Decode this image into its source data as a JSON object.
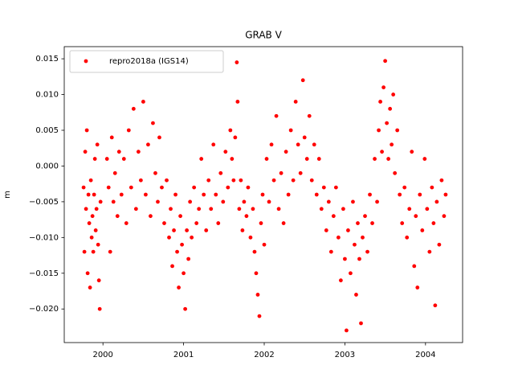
{
  "chart_data": {
    "type": "scatter",
    "title": "GRAB V",
    "y_label": "m",
    "legend_position": "upper left",
    "series": [
      {
        "name": "repro2018a (IGS14)",
        "color": "#ff0000",
        "x": [
          1999.76,
          1999.77,
          1999.78,
          1999.79,
          1999.8,
          1999.81,
          1999.82,
          1999.83,
          1999.84,
          1999.85,
          1999.86,
          1999.87,
          1999.88,
          1999.89,
          1999.9,
          1999.91,
          1999.92,
          1999.93,
          1999.94,
          1999.95,
          1999.96,
          1999.97,
          2000.05,
          2000.07,
          2000.09,
          2000.11,
          2000.13,
          2000.15,
          2000.18,
          2000.2,
          2000.23,
          2000.26,
          2000.29,
          2000.32,
          2000.35,
          2000.38,
          2000.41,
          2000.44,
          2000.47,
          2000.5,
          2000.53,
          2000.56,
          2000.59,
          2000.62,
          2000.65,
          2000.68,
          2000.7,
          2000.73,
          2000.76,
          2000.79,
          2000.82,
          2000.84,
          2000.86,
          2000.88,
          2000.9,
          2000.92,
          2000.94,
          2000.96,
          2000.98,
          2001.0,
          2001.02,
          2001.04,
          2001.06,
          2001.08,
          2001.1,
          2001.13,
          2001.16,
          2001.19,
          2001.22,
          2001.25,
          2001.28,
          2001.31,
          2001.34,
          2001.37,
          2001.4,
          2001.43,
          2001.46,
          2001.49,
          2001.52,
          2001.55,
          2001.58,
          2001.6,
          2001.62,
          2001.64,
          2001.66,
          2001.67,
          2001.69,
          2001.71,
          2001.73,
          2001.75,
          2001.78,
          2001.8,
          2001.83,
          2001.86,
          2001.88,
          2001.9,
          2001.92,
          2001.94,
          2001.96,
          2001.98,
          2002.0,
          2002.03,
          2002.06,
          2002.09,
          2002.12,
          2002.15,
          2002.18,
          2002.21,
          2002.24,
          2002.27,
          2002.3,
          2002.33,
          2002.36,
          2002.39,
          2002.42,
          2002.45,
          2002.48,
          2002.5,
          2002.53,
          2002.56,
          2002.59,
          2002.62,
          2002.65,
          2002.68,
          2002.71,
          2002.74,
          2002.77,
          2002.8,
          2002.83,
          2002.86,
          2002.89,
          2002.92,
          2002.95,
          2002.98,
          2003.0,
          2003.02,
          2003.04,
          2003.07,
          2003.1,
          2003.12,
          2003.14,
          2003.16,
          2003.18,
          2003.2,
          2003.22,
          2003.25,
          2003.28,
          2003.31,
          2003.34,
          2003.37,
          2003.4,
          2003.42,
          2003.44,
          2003.46,
          2003.48,
          2003.5,
          2003.52,
          2003.54,
          2003.56,
          2003.58,
          2003.6,
          2003.62,
          2003.65,
          2003.68,
          2003.71,
          2003.74,
          2003.77,
          2003.8,
          2003.83,
          2003.86,
          2003.88,
          2003.9,
          2003.93,
          2003.96,
          2003.99,
          2004.02,
          2004.05,
          2004.08,
          2004.1,
          2004.12,
          2004.14,
          2004.17,
          2004.2,
          2004.23,
          2004.25
        ],
        "values": [
          -0.003,
          -0.012,
          0.002,
          -0.006,
          0.005,
          -0.015,
          -0.004,
          -0.008,
          -0.017,
          -0.002,
          -0.01,
          -0.007,
          -0.012,
          -0.004,
          0.001,
          -0.009,
          -0.006,
          0.003,
          -0.011,
          -0.016,
          -0.02,
          -0.005,
          0.001,
          -0.003,
          -0.012,
          0.004,
          -0.005,
          -0.001,
          -0.007,
          0.002,
          -0.004,
          0.001,
          -0.008,
          0.005,
          -0.003,
          0.008,
          -0.006,
          0.002,
          -0.002,
          0.009,
          -0.004,
          0.003,
          -0.007,
          0.006,
          -0.001,
          -0.005,
          0.004,
          -0.003,
          -0.008,
          -0.002,
          -0.01,
          -0.006,
          -0.014,
          -0.009,
          -0.004,
          -0.012,
          -0.017,
          -0.007,
          -0.011,
          -0.015,
          -0.02,
          -0.009,
          -0.013,
          -0.005,
          -0.01,
          -0.003,
          -0.008,
          -0.006,
          0.001,
          -0.004,
          -0.009,
          -0.002,
          -0.006,
          0.003,
          -0.004,
          -0.008,
          -0.001,
          -0.005,
          0.002,
          -0.003,
          0.005,
          0.001,
          -0.002,
          0.004,
          0.0145,
          0.009,
          -0.006,
          -0.002,
          -0.009,
          -0.005,
          -0.007,
          -0.003,
          -0.01,
          -0.006,
          -0.012,
          -0.015,
          -0.018,
          -0.021,
          -0.008,
          -0.004,
          -0.011,
          0.001,
          -0.005,
          0.003,
          -0.002,
          0.007,
          -0.006,
          -0.001,
          -0.008,
          0.002,
          -0.004,
          0.005,
          -0.002,
          0.009,
          0.003,
          -0.001,
          0.012,
          0.004,
          0.001,
          0.007,
          -0.002,
          0.003,
          -0.004,
          0.001,
          -0.006,
          -0.003,
          -0.009,
          -0.005,
          -0.012,
          -0.007,
          -0.003,
          -0.01,
          -0.016,
          -0.006,
          -0.013,
          -0.023,
          -0.009,
          -0.015,
          -0.005,
          -0.011,
          -0.018,
          -0.008,
          -0.013,
          -0.022,
          -0.01,
          -0.007,
          -0.012,
          -0.004,
          -0.008,
          0.001,
          -0.005,
          0.005,
          0.009,
          0.002,
          0.011,
          0.0147,
          0.006,
          0.001,
          0.008,
          0.003,
          0.01,
          -0.001,
          0.005,
          -0.004,
          -0.008,
          -0.003,
          -0.01,
          -0.006,
          0.002,
          -0.014,
          -0.007,
          -0.017,
          -0.004,
          -0.009,
          0.001,
          -0.006,
          -0.012,
          -0.003,
          -0.008,
          -0.0195,
          -0.005,
          -0.011,
          -0.002,
          -0.007,
          -0.004
        ]
      }
    ],
    "xlim": [
      1999.52,
      2004.46
    ],
    "xticks": [
      2000,
      2001,
      2002,
      2003,
      2004
    ],
    "ylim": [
      -0.0247,
      0.0167
    ],
    "yticks": [
      {
        "value": -0.02,
        "label": "−0.020"
      },
      {
        "value": -0.015,
        "label": "−0.015"
      },
      {
        "value": -0.01,
        "label": "−0.010"
      },
      {
        "value": -0.005,
        "label": "−0.005"
      },
      {
        "value": 0,
        "label": "0.000"
      },
      0.005,
      {
        "value": 0.01,
        "label": "0.010"
      },
      0.015
    ],
    "grid": false
  }
}
